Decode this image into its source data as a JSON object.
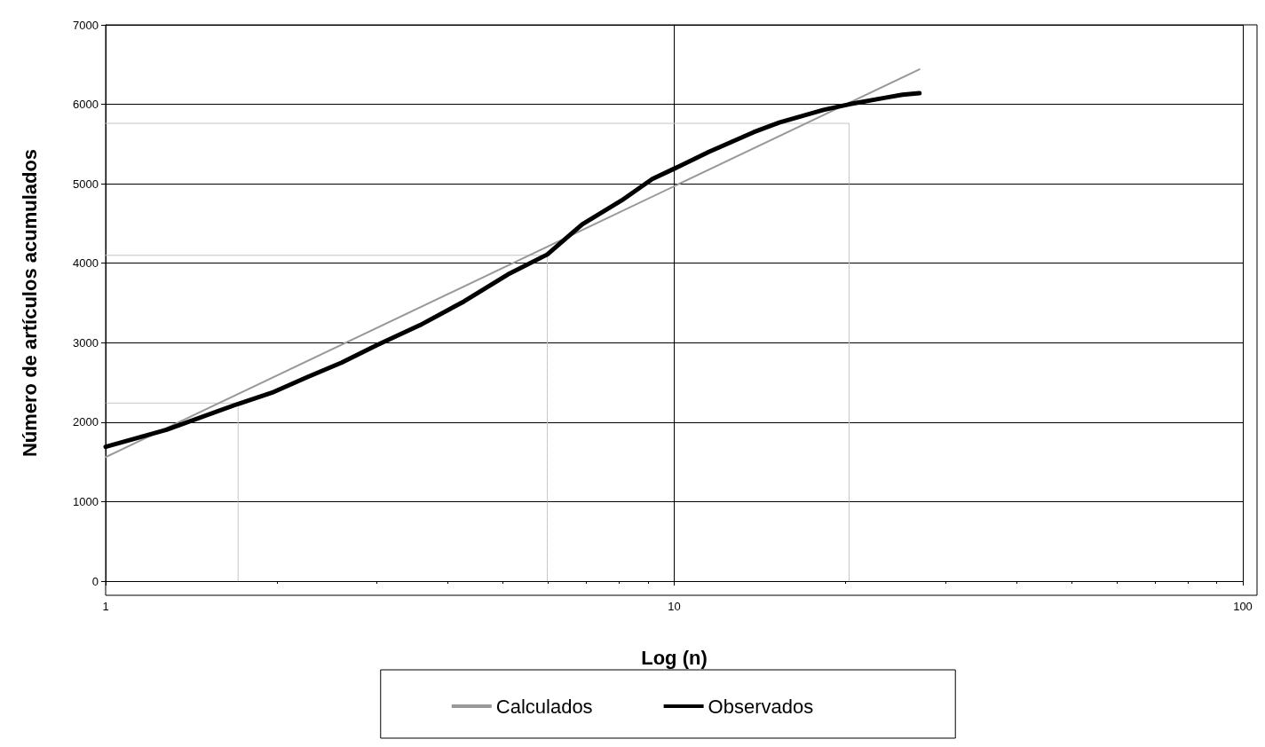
{
  "chart_data": {
    "type": "line",
    "xlabel": "Log (n)",
    "ylabel": "Número de artículos acumulados",
    "log": "x",
    "xlim": [
      1,
      100
    ],
    "xticks": [
      1,
      10,
      100
    ],
    "ylim": [
      0,
      7000
    ],
    "yticks": [
      0,
      1000,
      2000,
      3000,
      4000,
      5000,
      6000,
      7000
    ],
    "grid": true,
    "legend": "bottom",
    "marker": "none",
    "series": [
      {
        "name": "Calculados",
        "color": "#999999",
        "x": [
          1,
          27
        ],
        "values": [
          1560,
          6440
        ]
      },
      {
        "name": "Observados",
        "color": "#000000",
        "x": [
          1,
          1.28,
          1.71,
          1.96,
          2.25,
          2.6,
          3,
          3.57,
          4.27,
          5.1,
          5.98,
          6.89,
          8.08,
          9.15,
          10,
          11.5,
          13.8,
          15.3,
          18.3,
          20.3,
          23.4,
          25.2,
          27
        ],
        "values": [
          1690,
          1905,
          2230,
          2370,
          2560,
          2750,
          2970,
          3220,
          3520,
          3860,
          4110,
          4490,
          4790,
          5060,
          5190,
          5400,
          5650,
          5770,
          5930,
          6000,
          6080,
          6120,
          6140
        ]
      },
      {
        "color": "#bbbbbb",
        "line_style": "dotted",
        "x": [
          1.71,
          1.71,
          1
        ],
        "values": [
          0,
          2240,
          2240
        ]
      },
      {
        "color": "#bbbbbb",
        "line_style": "dotted",
        "x": [
          5.98,
          5.98,
          1
        ],
        "values": [
          0,
          4100,
          4100
        ]
      },
      {
        "color": "#bbbbbb",
        "line_style": "dotted",
        "x": [
          20.3,
          20.3,
          1
        ],
        "values": [
          0,
          5760,
          5760
        ]
      }
    ]
  }
}
